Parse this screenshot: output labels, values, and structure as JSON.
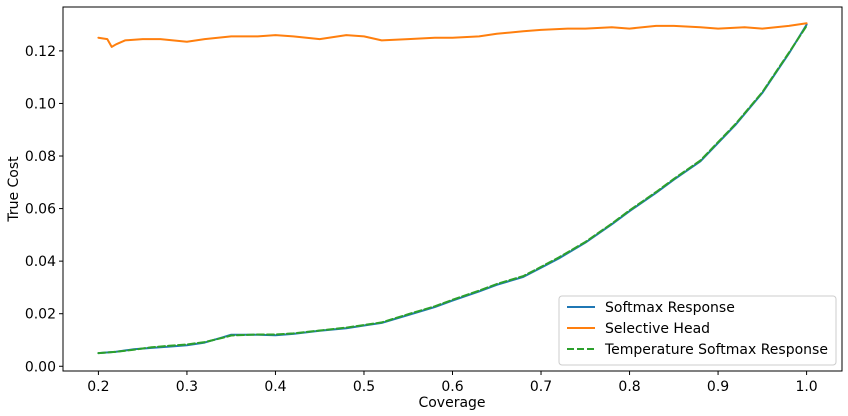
{
  "chart_data": {
    "type": "line",
    "title": "",
    "xlabel": "Coverage",
    "ylabel": "True Cost",
    "xlim": [
      0.16,
      1.04
    ],
    "ylim": [
      -0.0018,
      0.1367
    ],
    "xticks": [
      0.2,
      0.3,
      0.4,
      0.5,
      0.6,
      0.7,
      0.8,
      0.9,
      1.0
    ],
    "xtick_labels": [
      "0.2",
      "0.3",
      "0.4",
      "0.5",
      "0.6",
      "0.7",
      "0.8",
      "0.9",
      "1.0"
    ],
    "yticks": [
      0.0,
      0.02,
      0.04,
      0.06,
      0.08,
      0.1,
      0.12
    ],
    "ytick_labels": [
      "0.00",
      "0.02",
      "0.04",
      "0.06",
      "0.08",
      "0.10",
      "0.12"
    ],
    "grid": false,
    "legend_position": "lower-right",
    "series": [
      {
        "name": "Softmax Response",
        "color": "#1f77b4",
        "style": "solid",
        "x": [
          0.2,
          0.22,
          0.24,
          0.26,
          0.28,
          0.3,
          0.32,
          0.34,
          0.35,
          0.38,
          0.4,
          0.42,
          0.45,
          0.48,
          0.5,
          0.52,
          0.55,
          0.58,
          0.6,
          0.63,
          0.65,
          0.68,
          0.7,
          0.72,
          0.75,
          0.78,
          0.8,
          0.83,
          0.85,
          0.88,
          0.9,
          0.92,
          0.95,
          0.98,
          1.0
        ],
        "y": [
          0.005,
          0.0055,
          0.0065,
          0.007,
          0.0075,
          0.008,
          0.009,
          0.011,
          0.012,
          0.012,
          0.0118,
          0.0123,
          0.0135,
          0.0145,
          0.0155,
          0.0165,
          0.0195,
          0.0225,
          0.025,
          0.0285,
          0.031,
          0.034,
          0.0375,
          0.041,
          0.047,
          0.054,
          0.059,
          0.066,
          0.071,
          0.078,
          0.085,
          0.092,
          0.104,
          0.119,
          0.13
        ]
      },
      {
        "name": "Selective Head",
        "color": "#ff7f0e",
        "style": "solid",
        "x": [
          0.2,
          0.21,
          0.215,
          0.22,
          0.23,
          0.25,
          0.27,
          0.3,
          0.32,
          0.35,
          0.38,
          0.4,
          0.42,
          0.45,
          0.48,
          0.5,
          0.52,
          0.55,
          0.58,
          0.6,
          0.63,
          0.65,
          0.68,
          0.7,
          0.73,
          0.75,
          0.78,
          0.8,
          0.83,
          0.85,
          0.88,
          0.9,
          0.93,
          0.95,
          0.98,
          1.0
        ],
        "y": [
          0.125,
          0.1245,
          0.1215,
          0.1225,
          0.124,
          0.1245,
          0.1245,
          0.1235,
          0.1245,
          0.1255,
          0.1255,
          0.126,
          0.1255,
          0.1245,
          0.126,
          0.1255,
          0.124,
          0.1245,
          0.125,
          0.125,
          0.1255,
          0.1265,
          0.1275,
          0.128,
          0.1285,
          0.1285,
          0.129,
          0.1285,
          0.1295,
          0.1295,
          0.129,
          0.1285,
          0.129,
          0.1285,
          0.1295,
          0.1305
        ]
      },
      {
        "name": "Temperature Softmax Response",
        "color": "#2ca02c",
        "style": "dashed",
        "x": [
          0.2,
          0.22,
          0.24,
          0.26,
          0.28,
          0.3,
          0.32,
          0.34,
          0.35,
          0.38,
          0.4,
          0.42,
          0.45,
          0.48,
          0.5,
          0.52,
          0.55,
          0.58,
          0.6,
          0.63,
          0.65,
          0.68,
          0.7,
          0.72,
          0.75,
          0.78,
          0.8,
          0.83,
          0.85,
          0.88,
          0.9,
          0.92,
          0.95,
          0.98,
          1.0
        ],
        "y": [
          0.005,
          0.0055,
          0.0063,
          0.0072,
          0.0078,
          0.0083,
          0.0092,
          0.0108,
          0.0117,
          0.0121,
          0.0121,
          0.0125,
          0.0136,
          0.0147,
          0.0157,
          0.0167,
          0.0198,
          0.0228,
          0.0253,
          0.0288,
          0.0313,
          0.0343,
          0.0378,
          0.0414,
          0.0473,
          0.0543,
          0.0593,
          0.0663,
          0.0713,
          0.0783,
          0.0853,
          0.0923,
          0.1043,
          0.1193,
          0.1295
        ]
      }
    ]
  }
}
